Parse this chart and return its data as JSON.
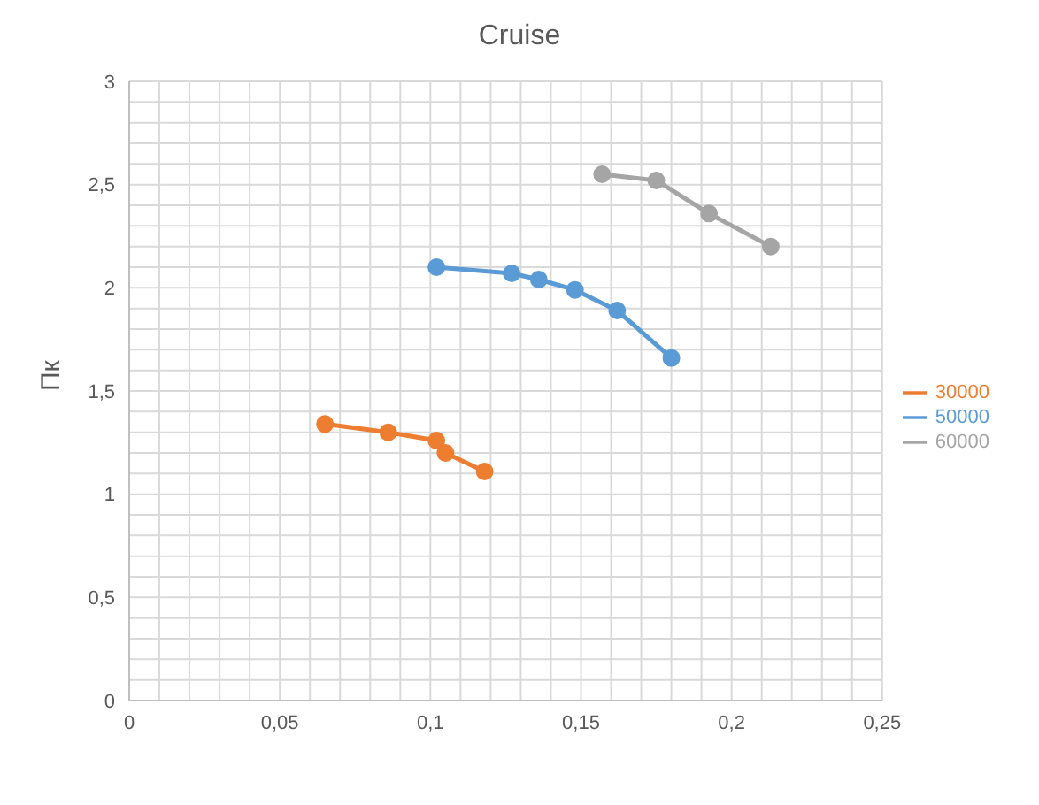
{
  "chart_data": {
    "type": "line",
    "title": "Cruise",
    "ylabel": "Пк",
    "xlim": [
      0,
      0.25
    ],
    "xticks": [
      {
        "value": 0,
        "label": "0"
      },
      {
        "value": 0.05,
        "label": "0,05"
      },
      {
        "value": 0.1,
        "label": "0,1"
      },
      {
        "value": 0.15,
        "label": "0,15"
      },
      {
        "value": 0.2,
        "label": "0,2"
      },
      {
        "value": 0.25,
        "label": "0,25"
      }
    ],
    "ylim": [
      0,
      3
    ],
    "yticks": [
      {
        "value": 0,
        "label": "0"
      },
      {
        "value": 0.5,
        "label": "0,5"
      },
      {
        "value": 1,
        "label": "1"
      },
      {
        "value": 1.5,
        "label": "1,5"
      },
      {
        "value": 2,
        "label": "2"
      },
      {
        "value": 2.5,
        "label": "2,5"
      },
      {
        "value": 3,
        "label": "3"
      }
    ],
    "grid": true,
    "legend": "right",
    "marker": "circle",
    "line_style": "solid",
    "series": [
      {
        "name": "60000",
        "color": "#a5a5a5",
        "x": [
          0.157,
          0.175,
          0.1925,
          0.213
        ],
        "values": [
          2.55,
          2.52,
          2.36,
          2.2
        ]
      },
      {
        "name": "50000",
        "color": "#5b9bd5",
        "x": [
          0.102,
          0.127,
          0.136,
          0.148,
          0.162,
          0.18
        ],
        "values": [
          2.1,
          2.07,
          2.04,
          1.99,
          1.89,
          1.66
        ]
      },
      {
        "name": "30000",
        "color": "#ed7d31",
        "x": [
          0.065,
          0.086,
          0.102,
          0.105,
          0.118
        ],
        "values": [
          1.34,
          1.3,
          1.26,
          1.2,
          1.11
        ]
      }
    ]
  }
}
